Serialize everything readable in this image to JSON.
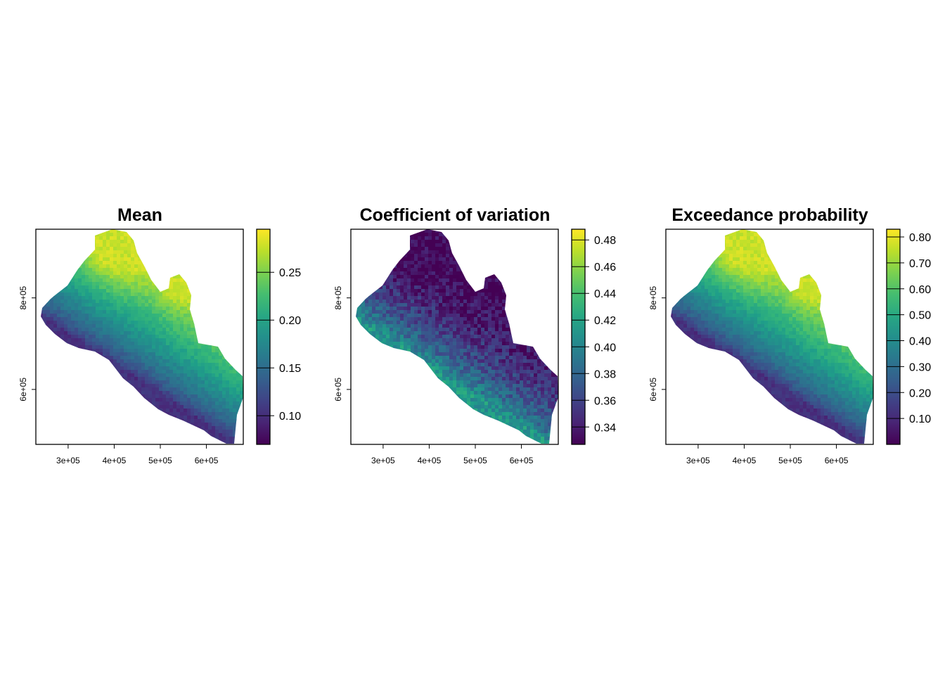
{
  "chart_data": [
    {
      "type": "heatmap",
      "title": "Mean",
      "x_ticks": [
        "3e+05",
        "4e+05",
        "5e+05",
        "6e+05"
      ],
      "x_tick_values": [
        300000,
        400000,
        500000,
        600000
      ],
      "y_ticks": [
        "6e+05",
        "8e+05"
      ],
      "y_tick_values": [
        600000,
        800000
      ],
      "xlim": [
        230000,
        680000
      ],
      "ylim": [
        480000,
        950000
      ],
      "colorbar": {
        "range": [
          0.07,
          0.295
        ],
        "ticks": [
          "0.10",
          "0.15",
          "0.20",
          "0.25"
        ],
        "tick_values": [
          0.1,
          0.15,
          0.2,
          0.25
        ],
        "colormap": "viridis",
        "reversed": false
      },
      "pattern": "higher values inland/north, lowest along southwest coast"
    },
    {
      "type": "heatmap",
      "title": "Coefficient of variation",
      "x_ticks": [
        "3e+05",
        "4e+05",
        "5e+05",
        "6e+05"
      ],
      "x_tick_values": [
        300000,
        400000,
        500000,
        600000
      ],
      "y_ticks": [
        "6e+05",
        "8e+05"
      ],
      "y_tick_values": [
        600000,
        800000
      ],
      "xlim": [
        230000,
        680000
      ],
      "ylim": [
        480000,
        950000
      ],
      "colorbar": {
        "range": [
          0.327,
          0.488
        ],
        "ticks": [
          "0.34",
          "0.36",
          "0.38",
          "0.40",
          "0.42",
          "0.44",
          "0.46",
          "0.48"
        ],
        "tick_values": [
          0.34,
          0.36,
          0.38,
          0.4,
          0.42,
          0.44,
          0.46,
          0.48
        ],
        "colormap": "viridis",
        "reversed": true
      },
      "pattern": "lowest inland/north, highest along southwest coast"
    },
    {
      "type": "heatmap",
      "title": "Exceedance probability",
      "x_ticks": [
        "3e+05",
        "4e+05",
        "5e+05",
        "6e+05"
      ],
      "x_tick_values": [
        300000,
        400000,
        500000,
        600000
      ],
      "y_ticks": [
        "6e+05",
        "8e+05"
      ],
      "y_tick_values": [
        600000,
        800000
      ],
      "xlim": [
        230000,
        680000
      ],
      "ylim": [
        480000,
        950000
      ],
      "colorbar": {
        "range": [
          0.0,
          0.83
        ],
        "ticks": [
          "0.10",
          "0.20",
          "0.30",
          "0.40",
          "0.50",
          "0.60",
          "0.70",
          "0.80"
        ],
        "tick_values": [
          0.1,
          0.2,
          0.3,
          0.4,
          0.5,
          0.6,
          0.7,
          0.8
        ],
        "colormap": "viridis",
        "reversed": false
      },
      "pattern": "higher values inland/north, lowest along southwest coast"
    }
  ]
}
